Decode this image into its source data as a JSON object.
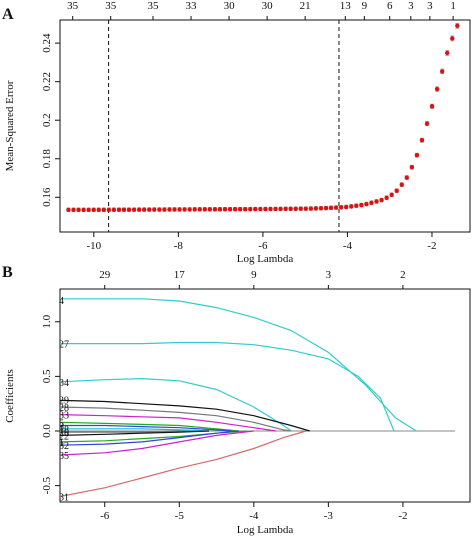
{
  "chart_data": [
    {
      "panel_label": "A",
      "type": "scatter",
      "xlabel": "Log Lambda",
      "ylabel": "Mean-Squared Error",
      "xlim": [
        -10.8,
        -1.1
      ],
      "ylim": [
        0.142,
        0.252
      ],
      "xticks": [
        -10,
        -8,
        -6,
        -4,
        -2
      ],
      "yticks": [
        0.16,
        0.18,
        0.2,
        0.22,
        0.24
      ],
      "top_axis_labels": [
        {
          "x": -10.5,
          "label": "35"
        },
        {
          "x": -9.6,
          "label": "35"
        },
        {
          "x": -8.6,
          "label": "35"
        },
        {
          "x": -7.7,
          "label": "33"
        },
        {
          "x": -6.8,
          "label": "30"
        },
        {
          "x": -5.9,
          "label": "30"
        },
        {
          "x": -5.0,
          "label": "21"
        },
        {
          "x": -4.05,
          "label": "13"
        },
        {
          "x": -3.6,
          "label": "9"
        },
        {
          "x": -3.0,
          "label": "6"
        },
        {
          "x": -2.5,
          "label": "3"
        },
        {
          "x": -2.05,
          "label": "3"
        },
        {
          "x": -1.5,
          "label": "1"
        }
      ],
      "vlines": [
        -9.65,
        -4.2
      ],
      "mse_curve": [
        [
          -10.6,
          0.1535
        ],
        [
          -10.0,
          0.1535
        ],
        [
          -9.0,
          0.1536
        ],
        [
          -8.0,
          0.1537
        ],
        [
          -7.0,
          0.1538
        ],
        [
          -6.0,
          0.1539
        ],
        [
          -5.0,
          0.1541
        ],
        [
          -4.5,
          0.1544
        ],
        [
          -4.0,
          0.155
        ],
        [
          -3.6,
          0.1562
        ],
        [
          -3.2,
          0.1585
        ],
        [
          -3.0,
          0.1605
        ],
        [
          -2.8,
          0.164
        ],
        [
          -2.6,
          0.17
        ],
        [
          -2.4,
          0.179
        ],
        [
          -2.2,
          0.192
        ],
        [
          -2.0,
          0.207
        ],
        [
          -1.8,
          0.222
        ],
        [
          -1.6,
          0.238
        ],
        [
          -1.4,
          0.249
        ]
      ],
      "point_color": "#dd1111",
      "errorbar_color": "#999999"
    },
    {
      "panel_label": "B",
      "type": "line",
      "xlabel": "Log Lambda",
      "ylabel": "Coefficients",
      "xlim": [
        -6.6,
        -1.1
      ],
      "ylim": [
        -0.65,
        1.3
      ],
      "xticks": [
        -6,
        -5,
        -4,
        -3,
        -2
      ],
      "yticks": [
        -0.5,
        0.0,
        0.5,
        1.0
      ],
      "top_axis_labels": [
        {
          "x": -6.0,
          "label": "29"
        },
        {
          "x": -5.0,
          "label": "17"
        },
        {
          "x": -4.0,
          "label": "9"
        },
        {
          "x": -3.0,
          "label": "3"
        },
        {
          "x": -2.0,
          "label": "2"
        }
      ],
      "left_labels": [
        {
          "y": 1.2,
          "label": "4"
        },
        {
          "y": 0.8,
          "label": "27"
        },
        {
          "y": 0.45,
          "label": "34"
        },
        {
          "y": 0.29,
          "label": "29"
        },
        {
          "y": 0.22,
          "label": "28"
        },
        {
          "y": 0.15,
          "label": "33"
        },
        {
          "y": 0.08,
          "label": "5"
        },
        {
          "y": 0.05,
          "label": "3"
        },
        {
          "y": 0.02,
          "label": "18"
        },
        {
          "y": -0.01,
          "label": "26"
        },
        {
          "y": -0.04,
          "label": "22"
        },
        {
          "y": -0.1,
          "label": "1"
        },
        {
          "y": -0.13,
          "label": "32"
        },
        {
          "y": -0.22,
          "label": "35"
        },
        {
          "y": -0.6,
          "label": "31"
        }
      ],
      "series": [
        {
          "color": "#33cccc",
          "points": [
            [
              -6.6,
              1.21
            ],
            [
              -6,
              1.21
            ],
            [
              -5.5,
              1.21
            ],
            [
              -5,
              1.19
            ],
            [
              -4.5,
              1.13
            ],
            [
              -4,
              1.04
            ],
            [
              -3.5,
              0.92
            ],
            [
              -3,
              0.72
            ],
            [
              -2.5,
              0.42
            ],
            [
              -2.1,
              0.12
            ],
            [
              -1.82,
              0
            ]
          ]
        },
        {
          "color": "#33cccc",
          "points": [
            [
              -6.6,
              0.8
            ],
            [
              -6,
              0.8
            ],
            [
              -5.5,
              0.8
            ],
            [
              -5,
              0.81
            ],
            [
              -4.5,
              0.81
            ],
            [
              -4,
              0.79
            ],
            [
              -3.5,
              0.74
            ],
            [
              -3,
              0.66
            ],
            [
              -2.6,
              0.5
            ],
            [
              -2.3,
              0.3
            ],
            [
              -2.12,
              0
            ]
          ]
        },
        {
          "color": "#33cccc",
          "points": [
            [
              -6.6,
              0.45
            ],
            [
              -6,
              0.47
            ],
            [
              -5.5,
              0.48
            ],
            [
              -5,
              0.46
            ],
            [
              -4.5,
              0.38
            ],
            [
              -4,
              0.22
            ],
            [
              -3.6,
              0.05
            ],
            [
              -3.5,
              0
            ]
          ]
        },
        {
          "color": "#111111",
          "points": [
            [
              -6.6,
              0.28
            ],
            [
              -6,
              0.27
            ],
            [
              -5.5,
              0.25
            ],
            [
              -5,
              0.23
            ],
            [
              -4.5,
              0.2
            ],
            [
              -4,
              0.14
            ],
            [
              -3.5,
              0.05
            ],
            [
              -3.25,
              0
            ]
          ]
        },
        {
          "color": "#777777",
          "points": [
            [
              -6.6,
              0.22
            ],
            [
              -6,
              0.21
            ],
            [
              -5.5,
              0.19
            ],
            [
              -5,
              0.17
            ],
            [
              -4.5,
              0.14
            ],
            [
              -4,
              0.08
            ],
            [
              -3.6,
              0.01
            ],
            [
              -3.5,
              0
            ]
          ]
        },
        {
          "color": "#cc22cc",
          "points": [
            [
              -6.6,
              0.15
            ],
            [
              -6,
              0.14
            ],
            [
              -5.5,
              0.13
            ],
            [
              -5,
              0.12
            ],
            [
              -4.5,
              0.08
            ],
            [
              -4,
              0.03
            ],
            [
              -3.7,
              0
            ]
          ]
        },
        {
          "color": "#22aa22",
          "points": [
            [
              -6.6,
              0.08
            ],
            [
              -6,
              0.07
            ],
            [
              -5.5,
              0.06
            ],
            [
              -5,
              0.05
            ],
            [
              -4.5,
              0.02
            ],
            [
              -4.2,
              0
            ]
          ]
        },
        {
          "color": "#3344dd",
          "points": [
            [
              -6.6,
              0.05
            ],
            [
              -6,
              0.05
            ],
            [
              -5.5,
              0.04
            ],
            [
              -5,
              0.03
            ],
            [
              -4.5,
              0.01
            ],
            [
              -4.3,
              0
            ]
          ]
        },
        {
          "color": "#11bbdd",
          "points": [
            [
              -6.6,
              0.02
            ],
            [
              -6,
              0.02
            ],
            [
              -5.5,
              0.02
            ],
            [
              -5,
              0.01
            ],
            [
              -4.6,
              0
            ]
          ]
        },
        {
          "color": "#777777",
          "points": [
            [
              -6.6,
              -0.01
            ],
            [
              -6,
              -0.01
            ],
            [
              -5.5,
              -0.01
            ],
            [
              -5,
              0
            ]
          ]
        },
        {
          "color": "#111111",
          "points": [
            [
              -6.6,
              -0.04
            ],
            [
              -6,
              -0.03
            ],
            [
              -5.5,
              -0.02
            ],
            [
              -5,
              -0.01
            ],
            [
              -4.6,
              0
            ]
          ]
        },
        {
          "color": "#22aa22",
          "points": [
            [
              -6.6,
              -0.1
            ],
            [
              -6,
              -0.09
            ],
            [
              -5.5,
              -0.07
            ],
            [
              -5,
              -0.05
            ],
            [
              -4.5,
              -0.02
            ],
            [
              -4.1,
              0
            ]
          ]
        },
        {
          "color": "#3344dd",
          "points": [
            [
              -6.6,
              -0.13
            ],
            [
              -6,
              -0.12
            ],
            [
              -5.5,
              -0.1
            ],
            [
              -5,
              -0.06
            ],
            [
              -4.5,
              -0.02
            ],
            [
              -4.2,
              0
            ]
          ]
        },
        {
          "color": "#cc22cc",
          "points": [
            [
              -6.6,
              -0.22
            ],
            [
              -6,
              -0.2
            ],
            [
              -5.5,
              -0.16
            ],
            [
              -5,
              -0.1
            ],
            [
              -4.5,
              -0.04
            ],
            [
              -4,
              0
            ]
          ]
        },
        {
          "color": "#d46a6a",
          "points": [
            [
              -6.6,
              -0.6
            ],
            [
              -6,
              -0.52
            ],
            [
              -5.5,
              -0.43
            ],
            [
              -5,
              -0.34
            ],
            [
              -4.5,
              -0.26
            ],
            [
              -4,
              -0.16
            ],
            [
              -3.6,
              -0.06
            ],
            [
              -3.3,
              0
            ]
          ]
        }
      ]
    }
  ]
}
